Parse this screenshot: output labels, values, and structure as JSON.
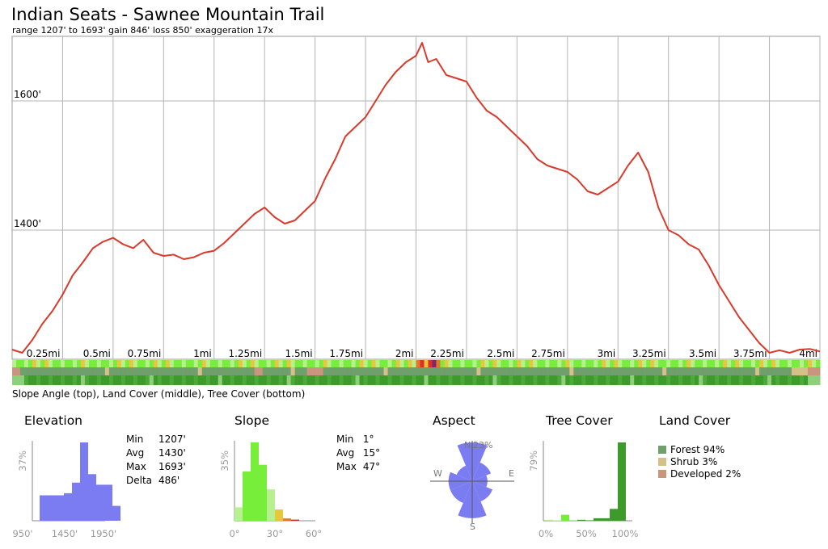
{
  "title": "Indian Seats - Sawnee Mountain Trail",
  "subtitle": "range 1207' to 1693'  gain 846'  loss 850'  exaggeration 17x",
  "bands_caption": "Slope Angle (top), Land Cover (middle), Tree Cover (bottom)",
  "colors": {
    "line": "#d93a2b",
    "grid": "#b4b4b4",
    "histogram_elev": "#7b7bf2",
    "slope_light": "#b8f090",
    "slope_mid": "#77ee3a",
    "slope_high": "#e8c83a",
    "tree": "#3e9a2a",
    "forest": "#6f9f6a",
    "shrub": "#d6c08a",
    "developed": "#c9957f"
  },
  "chart_data": [
    {
      "type": "line",
      "title": "Indian Seats - Sawnee Mountain Trail",
      "xlabel": "",
      "ylabel": "",
      "ylim": [
        1200,
        1700
      ],
      "xlim": [
        0,
        4.0
      ],
      "x_ticks": [
        {
          "value": 0.25,
          "label": "0.25mi"
        },
        {
          "value": 0.5,
          "label": "0.5mi"
        },
        {
          "value": 0.75,
          "label": "0.75mi"
        },
        {
          "value": 1.0,
          "label": "1mi"
        },
        {
          "value": 1.25,
          "label": "1.25mi"
        },
        {
          "value": 1.5,
          "label": "1.5mi"
        },
        {
          "value": 1.75,
          "label": "1.75mi"
        },
        {
          "value": 2.0,
          "label": "2mi"
        },
        {
          "value": 2.25,
          "label": "2.25mi"
        },
        {
          "value": 2.5,
          "label": "2.5mi"
        },
        {
          "value": 2.75,
          "label": "2.75mi"
        },
        {
          "value": 3.0,
          "label": "3mi"
        },
        {
          "value": 3.25,
          "label": "3.25mi"
        },
        {
          "value": 3.5,
          "label": "3.5mi"
        },
        {
          "value": 3.75,
          "label": "3.75mi"
        },
        {
          "value": 4.0,
          "label": "4mi"
        }
      ],
      "y_ticks": [
        {
          "value": 1400,
          "label": "1400'"
        },
        {
          "value": 1600,
          "label": "1600'"
        }
      ],
      "grid": true,
      "series": [
        {
          "x": [
            0.0,
            0.05,
            0.1,
            0.15,
            0.2,
            0.25,
            0.3,
            0.35,
            0.4,
            0.45,
            0.5,
            0.55,
            0.6,
            0.65,
            0.7,
            0.75,
            0.8,
            0.85,
            0.9,
            0.95,
            1.0,
            1.05,
            1.1,
            1.15,
            1.2,
            1.25,
            1.3,
            1.35,
            1.4,
            1.45,
            1.5,
            1.55,
            1.6,
            1.65,
            1.7,
            1.75,
            1.8,
            1.85,
            1.9,
            1.95,
            2.0,
            2.03,
            2.06,
            2.1,
            2.15,
            2.2,
            2.25,
            2.3,
            2.35,
            2.4,
            2.45,
            2.5,
            2.55,
            2.6,
            2.65,
            2.7,
            2.75,
            2.8,
            2.85,
            2.9,
            2.95,
            3.0,
            3.05,
            3.1,
            3.15,
            3.2,
            3.25,
            3.3,
            3.35,
            3.4,
            3.45,
            3.5,
            3.55,
            3.6,
            3.65,
            3.7,
            3.75,
            3.8,
            3.85,
            3.9,
            3.95,
            4.0
          ],
          "y": [
            1215,
            1210,
            1230,
            1255,
            1275,
            1300,
            1330,
            1350,
            1372,
            1382,
            1388,
            1378,
            1372,
            1385,
            1365,
            1360,
            1362,
            1355,
            1358,
            1365,
            1368,
            1380,
            1395,
            1410,
            1425,
            1435,
            1420,
            1410,
            1415,
            1430,
            1445,
            1480,
            1510,
            1545,
            1560,
            1575,
            1600,
            1625,
            1645,
            1660,
            1670,
            1690,
            1660,
            1665,
            1640,
            1635,
            1630,
            1605,
            1585,
            1575,
            1560,
            1545,
            1530,
            1510,
            1500,
            1495,
            1490,
            1478,
            1460,
            1455,
            1465,
            1475,
            1500,
            1520,
            1490,
            1435,
            1400,
            1392,
            1378,
            1370,
            1345,
            1315,
            1290,
            1265,
            1245,
            1225,
            1210,
            1214,
            1210,
            1215,
            1216,
            1212
          ]
        }
      ]
    },
    {
      "type": "bar",
      "title": "Elevation",
      "x_tick_labels": [
        "950'",
        "1450'",
        "1950'"
      ],
      "y_tick_label": "37%",
      "categories": [
        "1200",
        "1300",
        "1350",
        "1400",
        "1450",
        "1500",
        "1550",
        "1600",
        "1650",
        "1700"
      ],
      "values": [
        12,
        12,
        12,
        13,
        18,
        37,
        22,
        17,
        17,
        7
      ],
      "stats": [
        {
          "label": "Min",
          "value": "1207'"
        },
        {
          "label": "Avg",
          "value": "1430'"
        },
        {
          "label": "Max",
          "value": "1693'"
        },
        {
          "label": "Delta",
          "value": "486'"
        }
      ]
    },
    {
      "type": "bar",
      "title": "Slope",
      "x_tick_labels": [
        "0°",
        "30°",
        "60°"
      ],
      "y_tick_label": "35%",
      "categories": [
        "0-6",
        "6-12",
        "12-18",
        "18-24",
        "24-30",
        "30-36",
        "36-42",
        "42-48"
      ],
      "values": [
        6,
        22,
        35,
        25,
        14,
        5,
        1,
        0.5
      ],
      "stats": [
        {
          "label": "Min",
          "value": "1°"
        },
        {
          "label": "Avg",
          "value": "15°"
        },
        {
          "label": "Max",
          "value": "47°"
        }
      ]
    },
    {
      "type": "pie",
      "title": "Aspect",
      "directions": [
        "N",
        "NE",
        "E",
        "SE",
        "S",
        "SW",
        "W",
        "NW"
      ],
      "values": [
        23,
        12,
        9,
        13,
        22,
        14,
        14,
        10
      ],
      "labels": {
        "n": "N",
        "e": "E",
        "s": "S",
        "w": "W",
        "max": "23%"
      }
    },
    {
      "type": "bar",
      "title": "Tree Cover",
      "x_tick_labels": [
        "0%",
        "50%",
        "100%"
      ],
      "y_tick_label": "79%",
      "categories": [
        "0-10",
        "10-20",
        "20-30",
        "30-40",
        "40-50",
        "50-60",
        "60-70",
        "70-80",
        "80-90",
        "90-100"
      ],
      "values": [
        1,
        0.5,
        6,
        0.5,
        1,
        0.5,
        2.5,
        2.5,
        12,
        79
      ]
    },
    {
      "type": "bar",
      "title": "Land Cover",
      "categories": [
        "Forest 94%",
        "Shrub 3%",
        "Developed 2%"
      ],
      "values": [
        94,
        3,
        2
      ]
    }
  ]
}
